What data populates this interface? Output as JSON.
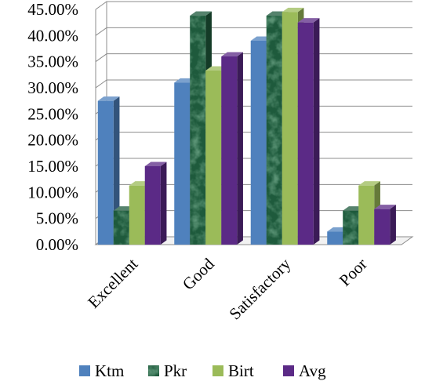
{
  "chart_data": {
    "type": "bar",
    "categories": [
      "Excellent",
      "Good",
      "Satisfactory",
      "Poor"
    ],
    "series": [
      {
        "name": "Ktm",
        "values": [
          27.5,
          31.0,
          39.0,
          2.5
        ],
        "color": "#4f81bd",
        "fill": "solid"
      },
      {
        "name": "Pkr",
        "values": [
          6.5,
          43.8,
          43.8,
          6.5
        ],
        "color": "#1e5a3c",
        "fill": "marble"
      },
      {
        "name": "Birt",
        "values": [
          11.3,
          33.3,
          44.5,
          11.3
        ],
        "color": "#9bbb59",
        "fill": "solid"
      },
      {
        "name": "Avg",
        "values": [
          15.0,
          36.0,
          42.5,
          6.8
        ],
        "color": "#5b2a86",
        "fill": "solid"
      }
    ],
    "yticks": [
      "0.00%",
      "5.00%",
      "10.00%",
      "15.00%",
      "20.00%",
      "25.00%",
      "30.00%",
      "35.00%",
      "40.00%",
      "45.00%"
    ],
    "ylim": [
      0,
      45
    ],
    "grid": true,
    "legend_position": "bottom",
    "title": "",
    "xlabel": "",
    "ylabel": ""
  }
}
